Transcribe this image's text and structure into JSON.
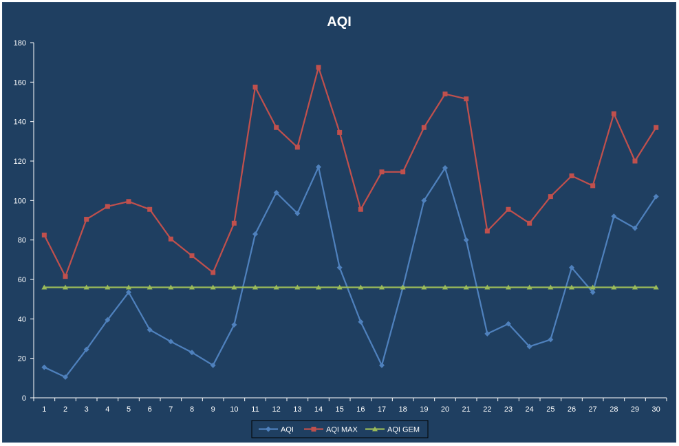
{
  "chart_data": {
    "type": "line",
    "title": "AQI",
    "xlabel": "",
    "ylabel": "",
    "x": [
      1,
      2,
      3,
      4,
      5,
      6,
      7,
      8,
      9,
      10,
      11,
      12,
      13,
      14,
      15,
      16,
      17,
      18,
      19,
      20,
      21,
      22,
      23,
      24,
      25,
      26,
      27,
      28,
      29,
      30
    ],
    "ylim": [
      0,
      180
    ],
    "yticks": [
      0,
      20,
      40,
      60,
      80,
      100,
      120,
      140,
      160,
      180
    ],
    "grid": false,
    "legend_position": "bottom",
    "series": [
      {
        "name": "AQI",
        "color": "#4f81bd",
        "marker": "diamond",
        "values": [
          15.5,
          10.5,
          24.5,
          39.5,
          53.5,
          34.5,
          28.5,
          23,
          16.5,
          37,
          83,
          104,
          93.5,
          117,
          66,
          38.5,
          16.5,
          56,
          100,
          116.5,
          80,
          32.5,
          37.5,
          26,
          29.5,
          66,
          53.5,
          92,
          86,
          102
        ]
      },
      {
        "name": "AQI MAX",
        "color": "#c0504d",
        "marker": "square",
        "values": [
          82.5,
          61.5,
          90.5,
          97,
          99.5,
          95.5,
          80.5,
          72,
          63.5,
          88.5,
          157.5,
          137,
          127,
          167.5,
          134.5,
          95.5,
          114.5,
          114.5,
          137,
          154,
          151.5,
          84.5,
          95.5,
          88.5,
          102,
          112.5,
          107.5,
          144,
          120,
          137
        ]
      },
      {
        "name": "AQI GEM",
        "color": "#9bbb59",
        "marker": "triangle",
        "values": [
          56,
          56,
          56,
          56,
          56,
          56,
          56,
          56,
          56,
          56,
          56,
          56,
          56,
          56,
          56,
          56,
          56,
          56,
          56,
          56,
          56,
          56,
          56,
          56,
          56,
          56,
          56,
          56,
          56,
          56
        ]
      }
    ]
  }
}
